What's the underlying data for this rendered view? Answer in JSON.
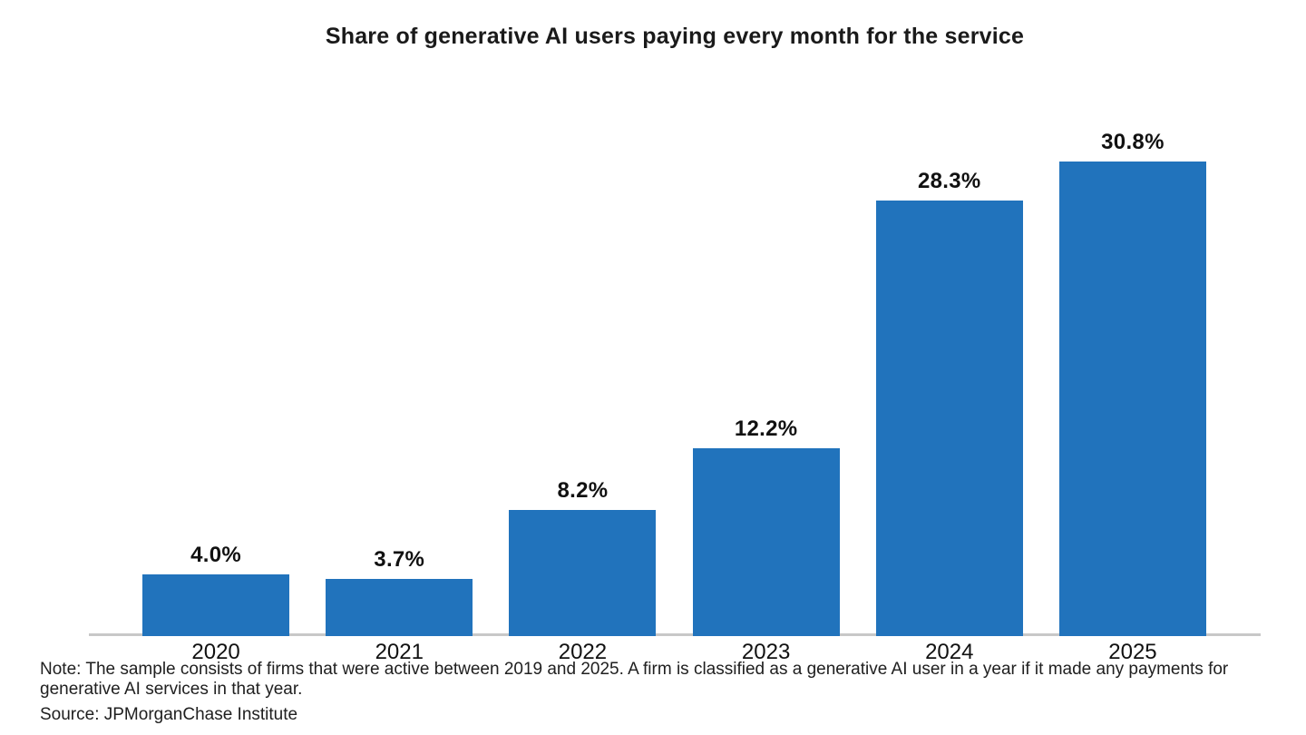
{
  "chart_data": {
    "type": "bar",
    "title": "Share of generative AI users paying every month for the service",
    "categories": [
      "2020",
      "2021",
      "2022",
      "2023",
      "2024",
      "2025"
    ],
    "values": [
      4.0,
      3.7,
      8.2,
      12.2,
      28.3,
      30.8
    ],
    "value_labels": [
      "4.0%",
      "3.7%",
      "8.2%",
      "12.2%",
      "28.3%",
      "30.8%"
    ],
    "xlabel": "",
    "ylabel": "",
    "ylim": [
      0,
      31
    ],
    "grid": false,
    "legend": false,
    "bar_color": "#2173BC",
    "axis_line_color": "#C8C8C8",
    "label_color": "#111111"
  },
  "footnote": {
    "note": "Note: The sample consists of firms that were active between 2019 and 2025. A firm is classified as a generative AI user in a year if it made any payments for generative AI services in that year.",
    "source": "Source: JPMorganChase Institute"
  }
}
